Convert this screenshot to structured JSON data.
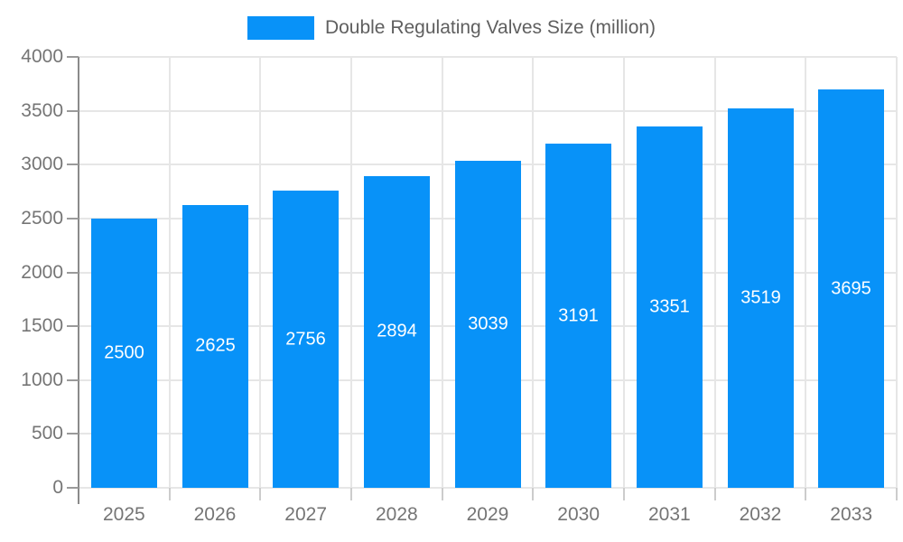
{
  "legend": {
    "label": "Double Regulating Valves Size (million)"
  },
  "chart_data": {
    "type": "bar",
    "title": "Double Regulating Valves Size (million)",
    "categories": [
      "2025",
      "2026",
      "2027",
      "2028",
      "2029",
      "2030",
      "2031",
      "2032",
      "2033"
    ],
    "values": [
      2500,
      2625,
      2756,
      2894,
      3039,
      3191,
      3351,
      3519,
      3695
    ],
    "xlabel": "",
    "ylabel": "",
    "ylim": [
      0,
      4000
    ],
    "yticks": [
      0,
      500,
      1000,
      1500,
      2000,
      2500,
      3000,
      3500,
      4000
    ],
    "grid": true,
    "legend_position": "top-center",
    "bar_value_labels": [
      "2500",
      "2625",
      "2756",
      "2894",
      "3039",
      "3191",
      "3351",
      "3519",
      "3695"
    ],
    "colors": {
      "bar": "#0892f8",
      "bar_label_text": "#ffffff",
      "axis_text": "#757575",
      "legend_text": "#5f5f5f",
      "gridline": "#e6e6e6",
      "axis_line": "#8a8a8a",
      "x_tick": "#cccccc"
    }
  }
}
